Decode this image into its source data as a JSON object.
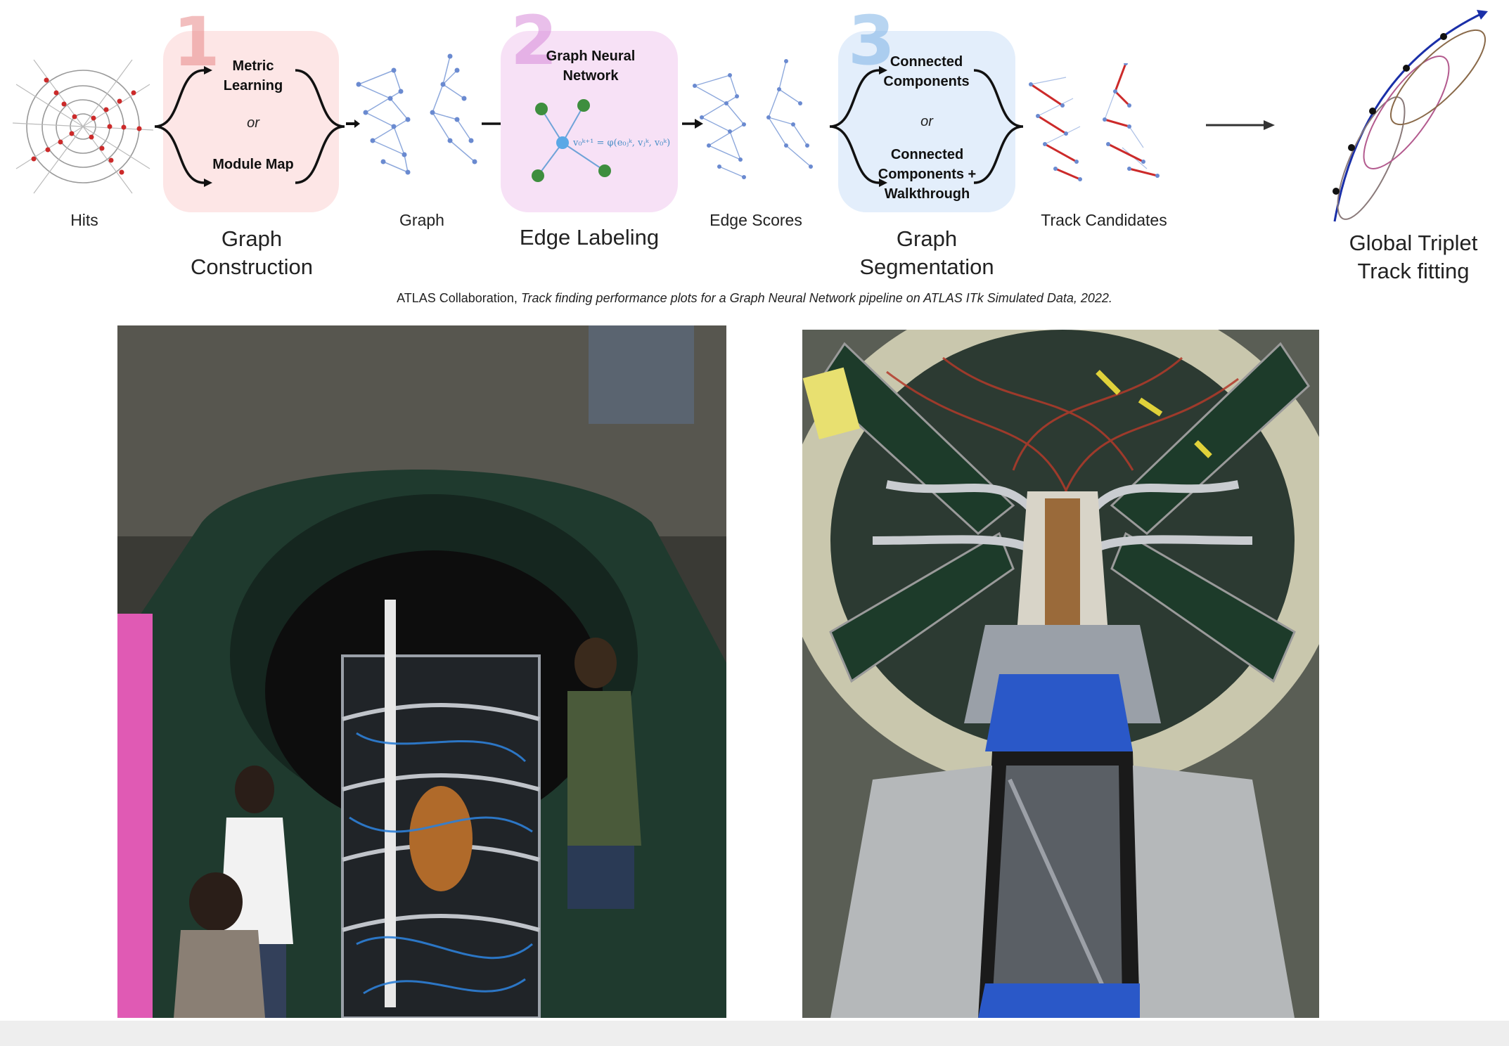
{
  "pipeline": {
    "stages": [
      {
        "number": "1",
        "top_text": "Metric Learning",
        "or_text": "or",
        "bottom_text": "Module Map",
        "label": "Graph Construction",
        "box_color": "#fde6e6",
        "number_color": "#e88a8a"
      },
      {
        "number": "2",
        "title": "Graph Neural Network",
        "formula": "v₀ᵏ⁺¹ = φ(e₀ⱼᵏ, vⱼᵏ, v₀ᵏ)",
        "label": "Edge Labeling",
        "box_color": "#f7e1f6",
        "number_color": "#d88bd9"
      },
      {
        "number": "3",
        "top_text": "Connected Components",
        "or_text": "or",
        "bottom_text": "Connected Components + Walkthrough",
        "label": "Graph Segmentation",
        "box_color": "#e3eefb",
        "number_color": "#7fb3e6"
      }
    ],
    "inputs": {
      "hits": "Hits",
      "graph": "Graph",
      "edge_scores": "Edge Scores",
      "track_candidates": "Track Candidates",
      "fitting": "Global Triplet Track fitting"
    }
  },
  "caption": {
    "prefix": "ATLAS Collaboration, ",
    "title": "Track finding performance plots for a Graph Neural Network pipeline on ATLAS ITk Simulated Data, 2022."
  },
  "photos": {
    "left_icon": "detector-installation-photo",
    "right_icon": "detector-closeup-photo"
  }
}
